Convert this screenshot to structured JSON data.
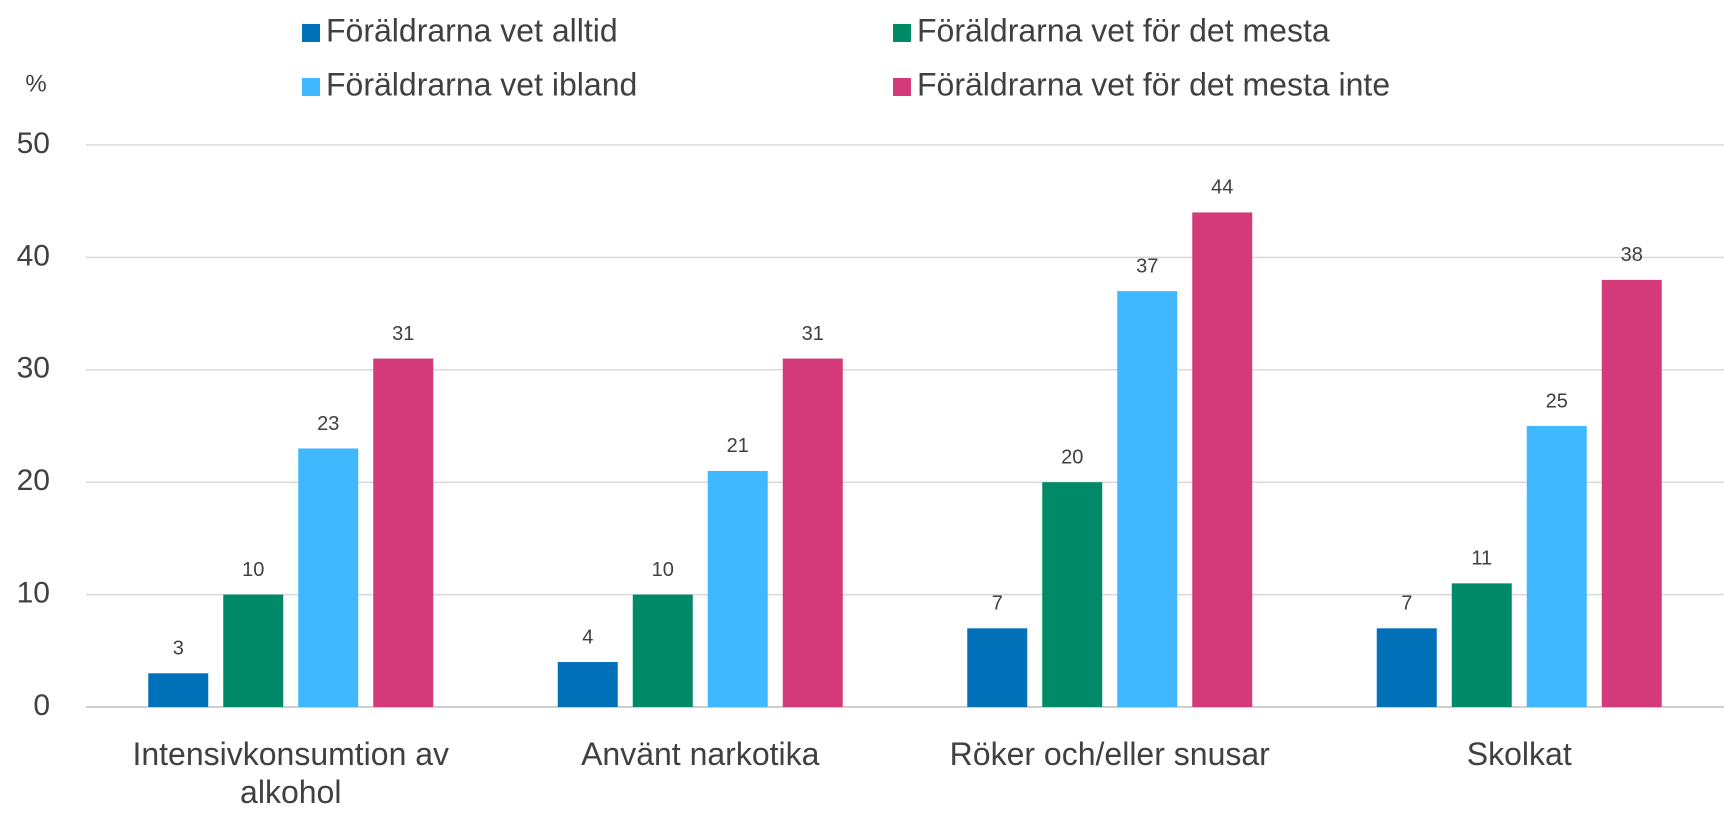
{
  "chart_data": {
    "type": "bar",
    "y_label": "%",
    "categories": [
      "Intensivkonsumtion av alkohol",
      "Använt narkotika",
      "Röker och/eller snusar",
      "Skolkat"
    ],
    "series": [
      {
        "name": "Föräldrarna vet alltid",
        "color": "#0070b8",
        "values": [
          3,
          4,
          7,
          7
        ]
      },
      {
        "name": "Föräldrarna vet för det mesta",
        "color": "#008a68",
        "values": [
          10,
          10,
          20,
          11
        ]
      },
      {
        "name": "Föräldrarna vet ibland",
        "color": "#3fb8ff",
        "values": [
          23,
          21,
          37,
          25
        ]
      },
      {
        "name": "Föräldrarna vet för det mesta inte",
        "color": "#d43a7a",
        "values": [
          31,
          31,
          44,
          38
        ]
      }
    ],
    "ylim": [
      0,
      50
    ],
    "yticks": [
      0,
      10,
      20,
      30,
      40,
      50
    ],
    "grid": true,
    "legend": "top"
  }
}
